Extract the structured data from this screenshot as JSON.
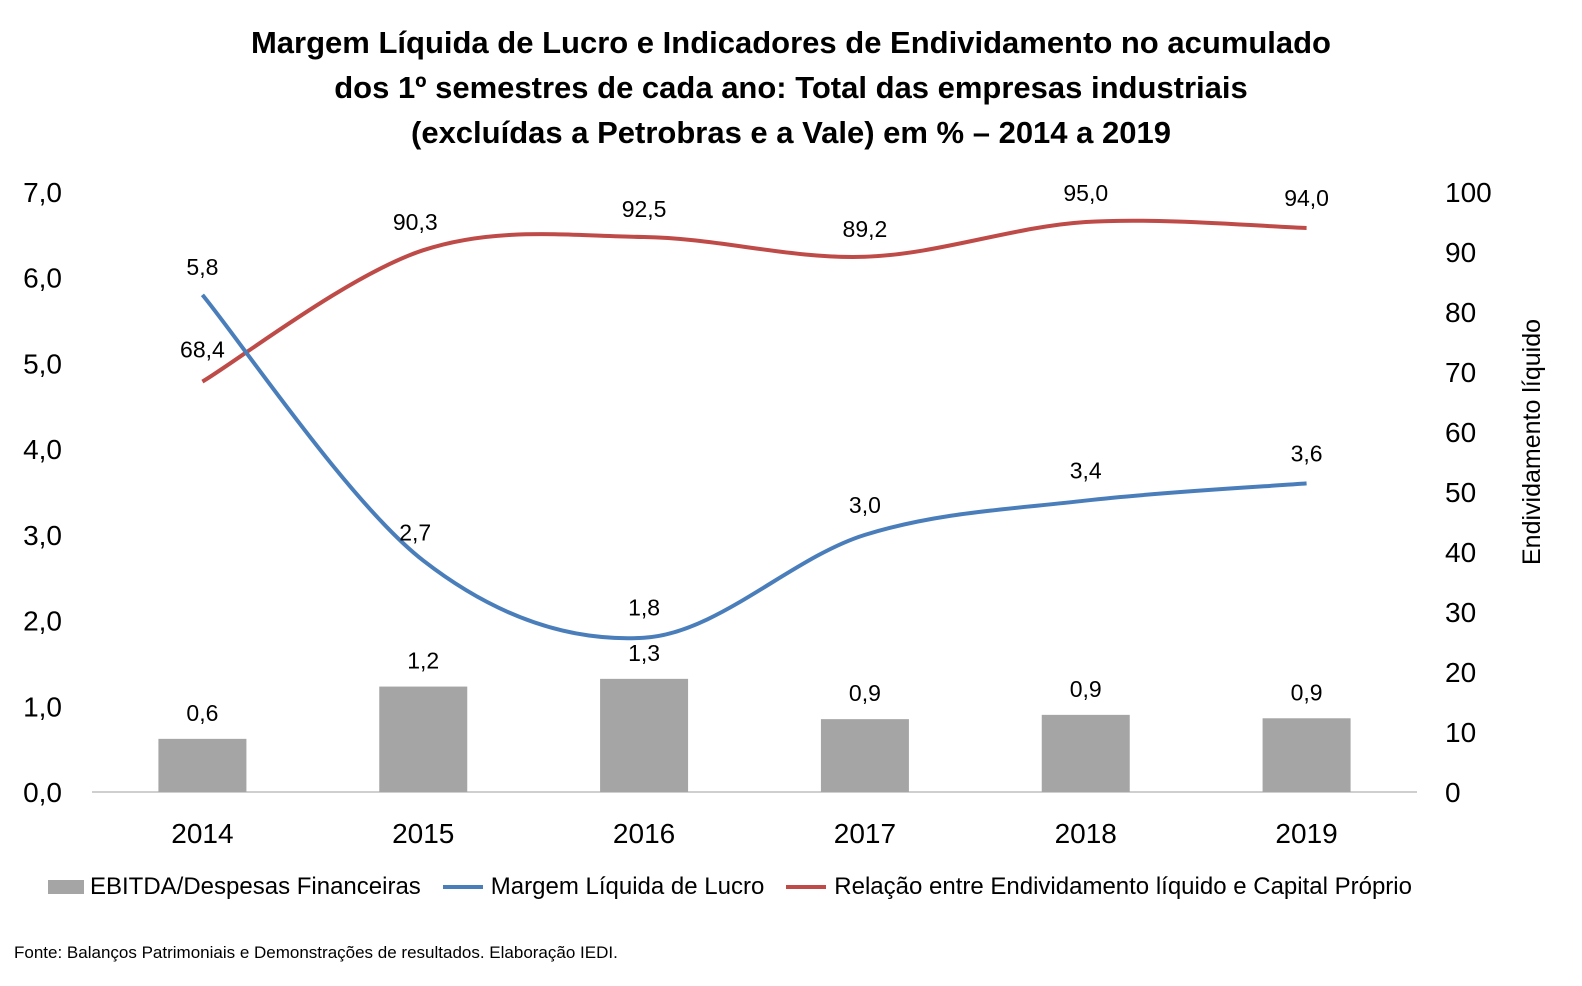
{
  "chart_data": {
    "type": "bar+line",
    "title_lines": [
      "Margem Líquida de Lucro e Indicadores de Endividamento no acumulado",
      "dos 1º semestres de cada ano: Total das empresas industriais",
      "(excluídas a Petrobras e a Vale) em % – 2014 a 2019"
    ],
    "categories": [
      "2014",
      "2015",
      "2016",
      "2017",
      "2018",
      "2019"
    ],
    "left_axis": {
      "ylim": [
        0,
        7
      ],
      "ticks": [
        "0,0",
        "1,0",
        "2,0",
        "3,0",
        "4,0",
        "5,0",
        "6,0",
        "7,0"
      ],
      "label": ""
    },
    "right_axis": {
      "ylim": [
        0,
        100
      ],
      "ticks": [
        "0",
        "10",
        "20",
        "30",
        "40",
        "50",
        "60",
        "70",
        "80",
        "90",
        "100"
      ],
      "label": "Endividamento líquido"
    },
    "series": [
      {
        "name": "EBITDA/Despesas Financeiras",
        "type": "bar",
        "axis": "left",
        "color": "#a5a5a5",
        "values": [
          0.62,
          1.23,
          1.32,
          0.85,
          0.9,
          0.86
        ],
        "labels": [
          "0,6",
          "1,2",
          "1,3",
          "0,9",
          "0,9",
          "0,9"
        ]
      },
      {
        "name": "Margem Líquida de Lucro",
        "type": "line",
        "axis": "left",
        "color": "#4a7ebb",
        "values": [
          5.8,
          2.7,
          1.8,
          3.0,
          3.4,
          3.6
        ],
        "labels": [
          "5,8",
          "2,7",
          "1,8",
          "3,0",
          "3,4",
          "3,6"
        ]
      },
      {
        "name": "Relação entre Endividamento líquido e Capital Próprio",
        "type": "line",
        "axis": "right",
        "color": "#be4b48",
        "values": [
          68.4,
          90.3,
          92.5,
          89.2,
          95.0,
          94.0
        ],
        "labels": [
          "68,4",
          "90,3",
          "92,5",
          "89,2",
          "95,0",
          "94,0"
        ]
      }
    ],
    "legend_position": "bottom",
    "grid": false
  },
  "source_note": "Fonte: Balanços Patrimoniais e Demonstrações de resultados. Elaboração IEDI."
}
